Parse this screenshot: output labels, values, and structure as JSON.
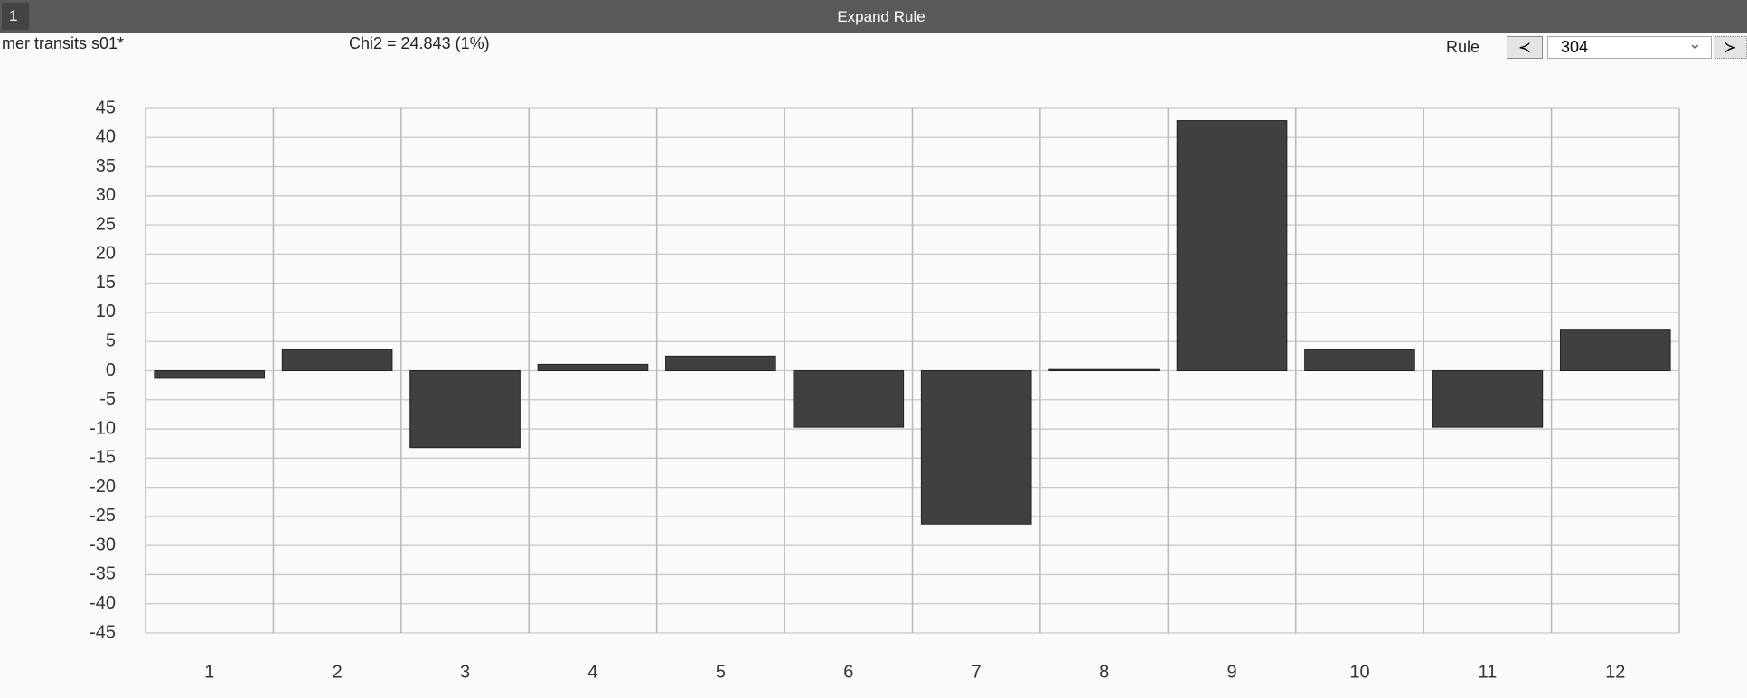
{
  "window": {
    "tab": "1",
    "title": "Expand Rule",
    "name": "mer transits s01*",
    "stat": "Chi2 = 24.843 (1%)",
    "rule_label": "Rule",
    "prev": "≺",
    "next": "≻",
    "rule_value": "304"
  },
  "chart_data": {
    "type": "bar",
    "categories": [
      "1",
      "2",
      "3",
      "4",
      "5",
      "6",
      "7",
      "8",
      "9",
      "10",
      "11",
      "12"
    ],
    "values": [
      -1.3,
      3.6,
      -13.2,
      1.1,
      2.5,
      -9.7,
      -26.3,
      0.2,
      42.9,
      3.6,
      -9.7,
      7.1
    ],
    "color": "#404040",
    "ylim": [
      -45,
      45
    ],
    "yticks": [
      -45,
      -40,
      -35,
      -30,
      -25,
      -20,
      -15,
      -10,
      -5,
      0,
      5,
      10,
      15,
      20,
      25,
      30,
      35,
      40,
      45
    ],
    "grid": true
  }
}
